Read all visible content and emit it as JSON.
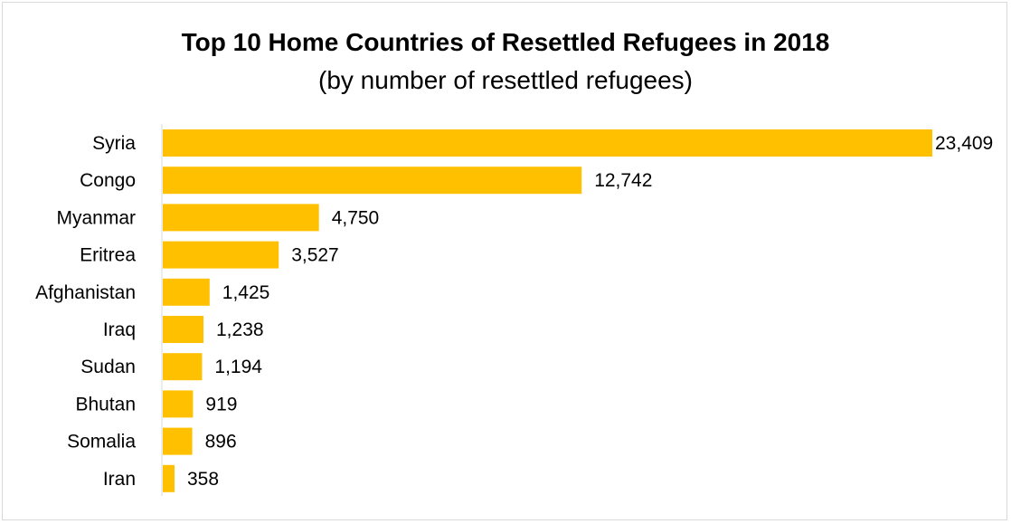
{
  "chart_data": {
    "type": "bar",
    "orientation": "horizontal",
    "title": "Top 10 Home Countries of Resettled Refugees in 2018",
    "subtitle": "(by number of resettled refugees)",
    "categories": [
      "Syria",
      "Congo",
      "Myanmar",
      "Eritrea",
      "Afghanistan",
      "Iraq",
      "Sudan",
      "Bhutan",
      "Somalia",
      "Iran"
    ],
    "values": [
      23409,
      12742,
      4750,
      3527,
      1425,
      1238,
      1194,
      919,
      896,
      358
    ],
    "value_labels": [
      "23,409",
      "12,742",
      "4,750",
      "3,527",
      "1,425",
      "1,238",
      "1,194",
      "919",
      "896",
      "358"
    ],
    "xlim": [
      0,
      23409
    ],
    "bar_color": "#FFC000",
    "axis_color": "#d9d9d9",
    "grid": false,
    "legend": "none"
  }
}
